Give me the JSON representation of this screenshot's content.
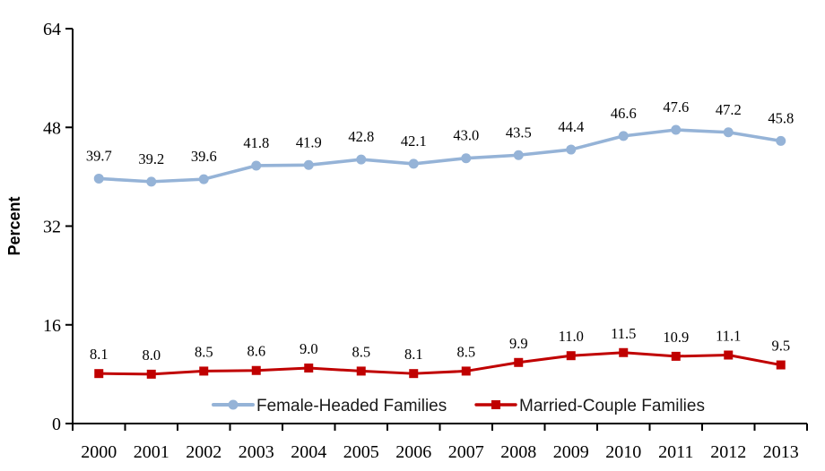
{
  "chart_data": {
    "type": "line",
    "title": "",
    "xlabel": "",
    "ylabel": "Percent",
    "ylim": [
      0,
      64
    ],
    "y_ticks": [
      0,
      16,
      32,
      48,
      64
    ],
    "grid": false,
    "legend_position": "bottom-inside",
    "data_labels": true,
    "categories": [
      "2000",
      "2001",
      "2002",
      "2003",
      "2004",
      "2005",
      "2006",
      "2007",
      "2008",
      "2009",
      "2010",
      "2011",
      "2012",
      "2013"
    ],
    "series": [
      {
        "name": "Female-Headed Families",
        "color": "#95B3D7",
        "marker": "circle",
        "values": [
          39.7,
          39.2,
          39.6,
          41.8,
          41.9,
          42.8,
          42.1,
          43.0,
          43.5,
          44.4,
          46.6,
          47.6,
          47.2,
          45.8
        ]
      },
      {
        "name": "Married-Couple Families",
        "color": "#C00000",
        "marker": "square",
        "values": [
          8.1,
          8.0,
          8.5,
          8.6,
          9.0,
          8.5,
          8.1,
          8.5,
          9.9,
          11.0,
          11.5,
          10.9,
          11.1,
          9.5
        ]
      }
    ]
  },
  "colors": {
    "axis": "#000000",
    "tick_text": "#000000",
    "data_label_text": "#000000",
    "legend_text": "#1a1a1a",
    "background": "#ffffff"
  }
}
